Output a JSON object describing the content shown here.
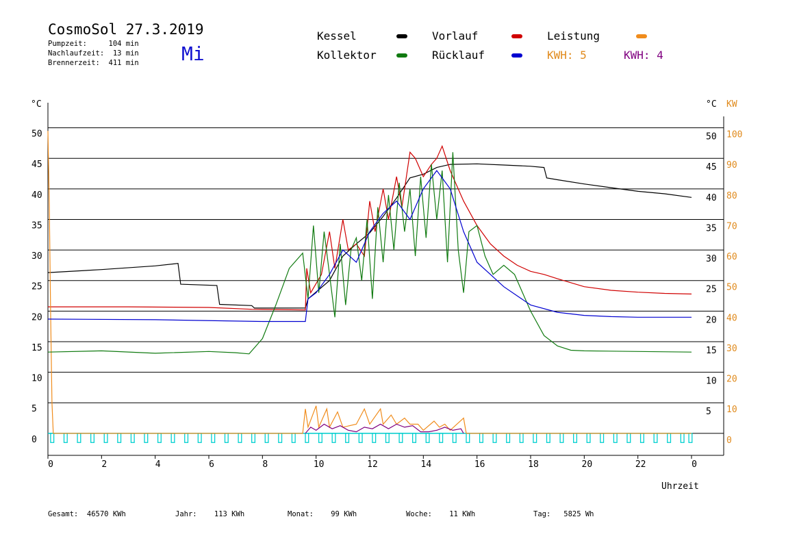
{
  "chart_data": {
    "type": "line",
    "title": "CosmoSol 27.3.2019",
    "weekday": "Mi",
    "info": [
      "Pumpzeit:     104 min",
      "Nachlaufzeit:  13 min",
      "Brennerzeit:  411 min"
    ],
    "ylabel": "°C",
    "y2label_temp": "°C",
    "y2label": "KW",
    "xlabel": "Uhrzeit",
    "xlim": [
      0,
      25.2
    ],
    "xticks": [
      0,
      2,
      4,
      6,
      8,
      10,
      12,
      14,
      16,
      18,
      20,
      22,
      {
        "value": 24,
        "label": "0"
      }
    ],
    "ylim": [
      -3.6,
      54.1
    ],
    "yticks": [
      0,
      5,
      10,
      15,
      20,
      25,
      30,
      35,
      40,
      45,
      50
    ],
    "yticks_right": [
      5,
      10,
      15,
      20,
      25,
      30,
      35,
      40,
      45,
      50
    ],
    "y2lim": [
      -7.2,
      108.2
    ],
    "y2ticks": [
      0,
      10,
      20,
      30,
      40,
      50,
      60,
      70,
      80,
      90,
      100
    ],
    "y2color": "#e08a1c",
    "grid": true,
    "series": [
      {
        "name": "Kessel",
        "color": "#000000",
        "x": [
          0,
          2,
          4,
          4.85,
          4.95,
          6.3,
          6.4,
          7.6,
          7.7,
          9.6,
          9.7,
          10.5,
          11,
          11.5,
          12,
          12.5,
          13,
          13.5,
          14,
          14.5,
          15,
          16,
          17,
          18,
          18.5,
          18.6,
          19,
          20,
          21,
          22,
          23,
          24
        ],
        "values": [
          26.3,
          26.8,
          27.4,
          27.8,
          24.4,
          24.2,
          21.1,
          20.9,
          20.5,
          20.5,
          22,
          25,
          29,
          31,
          32.8,
          35.5,
          38.5,
          41.8,
          42.4,
          43.5,
          44,
          44.1,
          43.9,
          43.7,
          43.5,
          41.8,
          41.5,
          40.8,
          40.2,
          39.6,
          39.2,
          38.6
        ]
      },
      {
        "name": "Vorlauf",
        "color": "#d00000",
        "x": [
          0,
          3,
          6,
          7.6,
          9.6,
          9.65,
          9.8,
          10.2,
          10.5,
          10.7,
          11,
          11.2,
          11.5,
          11.8,
          12,
          12.2,
          12.5,
          12.7,
          13,
          13.2,
          13.5,
          13.7,
          14,
          14.3,
          14.5,
          14.7,
          15,
          15.5,
          16,
          16.5,
          17,
          17.5,
          18,
          18.5,
          19,
          20,
          21,
          22,
          23,
          24
        ],
        "values": [
          20.7,
          20.7,
          20.6,
          20.3,
          20.2,
          27,
          23,
          26,
          33,
          27,
          35,
          30,
          31,
          29,
          38,
          33,
          40,
          35,
          42,
          37,
          46,
          45,
          42,
          44,
          45,
          47,
          43,
          38,
          34,
          31,
          29,
          27.5,
          26.5,
          26,
          25.3,
          24,
          23.4,
          23.1,
          22.9,
          22.8
        ]
      },
      {
        "name": "Leistung",
        "color": "#f08c1c",
        "axis": "y2",
        "x": [
          0,
          0.05,
          0.1,
          0.15,
          0.2,
          9.5,
          9.6,
          9.7,
          10,
          10.1,
          10.4,
          10.5,
          10.8,
          11,
          11.5,
          11.8,
          12,
          12.4,
          12.5,
          12.8,
          13,
          13.3,
          13.5,
          13.8,
          14,
          14.4,
          14.6,
          14.8,
          15,
          15.5,
          15.6,
          24
        ],
        "values": [
          99,
          75,
          40,
          10,
          0,
          0,
          8,
          2,
          9,
          2,
          8,
          2,
          7,
          2,
          3,
          8,
          3,
          8,
          3,
          6,
          3,
          5,
          3,
          3,
          1,
          4,
          2,
          3,
          1,
          5,
          0,
          0
        ]
      },
      {
        "name": "Kollektor",
        "color": "#107a10",
        "x": [
          0,
          2,
          4,
          6,
          7,
          7.5,
          8,
          8.5,
          9,
          9.5,
          9.7,
          9.9,
          10.1,
          10.3,
          10.5,
          10.7,
          10.9,
          11.1,
          11.3,
          11.5,
          11.7,
          11.9,
          12.1,
          12.3,
          12.5,
          12.7,
          12.9,
          13.1,
          13.3,
          13.5,
          13.7,
          13.9,
          14.1,
          14.3,
          14.5,
          14.7,
          14.9,
          15.1,
          15.3,
          15.5,
          15.7,
          16,
          16.3,
          16.6,
          17,
          17.4,
          18,
          18.5,
          19,
          19.5,
          20,
          22,
          24
        ],
        "values": [
          13.3,
          13.5,
          13.1,
          13.4,
          13.2,
          13,
          15.5,
          21,
          27,
          29.5,
          22,
          34,
          23,
          33,
          26,
          19,
          31,
          21,
          30,
          32,
          25,
          35,
          22,
          37,
          28,
          39,
          30,
          41,
          33,
          40,
          29,
          42,
          32,
          44,
          35,
          43,
          28,
          46,
          30,
          23,
          33,
          34,
          29,
          26,
          27.5,
          26,
          20,
          16,
          14.3,
          13.6,
          13.5,
          13.4,
          13.3
        ]
      },
      {
        "name": "Rücklauf",
        "color": "#0000d0",
        "x": [
          0,
          4,
          8,
          9.6,
          9.7,
          10,
          10.5,
          11,
          11.5,
          12,
          12.5,
          13,
          13.5,
          14,
          14.5,
          15,
          15.5,
          16,
          16.5,
          17,
          18,
          19,
          20,
          21,
          22,
          24
        ],
        "values": [
          18.7,
          18.6,
          18.3,
          18.3,
          22,
          23,
          26,
          30,
          28,
          33,
          36,
          38,
          35,
          40,
          43,
          40,
          33,
          28,
          26,
          24,
          21,
          19.8,
          19.3,
          19.1,
          19,
          19
        ]
      },
      {
        "color": "#800080",
        "axis": "y2",
        "x": [
          9.6,
          9.8,
          10,
          10.3,
          10.6,
          10.9,
          11.2,
          11.5,
          11.8,
          12.1,
          12.4,
          12.7,
          13,
          13.3,
          13.6,
          13.9,
          14.2,
          14.5,
          14.8,
          15.1,
          15.4,
          15.5
        ],
        "values": [
          0,
          2,
          1,
          3,
          1.5,
          2.5,
          1,
          0.5,
          2,
          1.5,
          3,
          1.5,
          3,
          2,
          2.5,
          0.5,
          0.5,
          1,
          2,
          1,
          1.5,
          0
        ]
      }
    ],
    "kwh_labels": [
      {
        "text": "KWH: 5",
        "color": "#e08a1c"
      },
      {
        "text": "KWH: 4",
        "color": "#800080"
      }
    ],
    "pump": {
      "color": "#00d0d0",
      "level": -1.5,
      "width": 0.12,
      "x": [
        0.1,
        0.6,
        1.1,
        1.6,
        2.1,
        2.6,
        3.1,
        3.6,
        4.1,
        4.6,
        5.1,
        5.6,
        6.1,
        6.6,
        7.1,
        7.6,
        8.1,
        8.6,
        9.1,
        9.6,
        10.1,
        10.6,
        11.1,
        11.6,
        12.1,
        12.6,
        13.1,
        13.6,
        14.1,
        14.6,
        15.1,
        15.6,
        16.1,
        16.6,
        17.1,
        17.6,
        18.1,
        18.6,
        19.1,
        19.6,
        20.1,
        20.6,
        21.1,
        21.6,
        22.1,
        22.6,
        23.1,
        23.6,
        23.9
      ]
    },
    "footer": [
      "Gesamt:  46570 KWh",
      "Jahr:    113 KWh",
      "Monat:    99 KWh",
      "Woche:    11 KWh",
      "Tag:   5825 Wh"
    ]
  }
}
